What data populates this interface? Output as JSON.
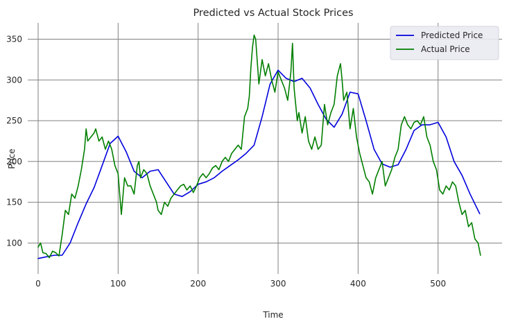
{
  "chart_data": {
    "type": "line",
    "title": "Predicted vs Actual Stock Prices",
    "xlabel": "Time",
    "ylabel": "Price",
    "xlim": [
      -13,
      580
    ],
    "ylim": [
      62,
      370
    ],
    "xticks": [
      0,
      100,
      200,
      300,
      400,
      500
    ],
    "yticks": [
      100,
      150,
      200,
      250,
      300,
      350
    ],
    "grid": true,
    "legend_position": "top-right",
    "series": [
      {
        "name": "Predicted Price",
        "color": "#0000dd",
        "x": [
          0,
          10,
          20,
          30,
          40,
          50,
          60,
          70,
          80,
          90,
          100,
          110,
          120,
          130,
          140,
          150,
          160,
          170,
          180,
          190,
          200,
          210,
          220,
          230,
          240,
          250,
          260,
          270,
          280,
          290,
          300,
          310,
          320,
          330,
          340,
          350,
          360,
          370,
          380,
          390,
          400,
          410,
          420,
          430,
          440,
          450,
          460,
          470,
          480,
          490,
          500,
          510,
          520,
          530,
          540,
          552
        ],
        "values": [
          81,
          83,
          85,
          85,
          100,
          125,
          148,
          168,
          195,
          222,
          231,
          212,
          188,
          180,
          188,
          190,
          175,
          160,
          157,
          163,
          172,
          175,
          180,
          188,
          195,
          202,
          210,
          220,
          255,
          295,
          312,
          302,
          298,
          302,
          290,
          270,
          252,
          242,
          258,
          285,
          283,
          250,
          215,
          197,
          193,
          196,
          215,
          238,
          245,
          245,
          248,
          230,
          200,
          183,
          160,
          136
        ]
      },
      {
        "name": "Actual Price",
        "color": "#007f00",
        "x": [
          0,
          3,
          6,
          10,
          14,
          18,
          22,
          26,
          30,
          34,
          38,
          42,
          46,
          50,
          54,
          58,
          60,
          62,
          66,
          70,
          72,
          76,
          80,
          84,
          88,
          92,
          96,
          100,
          102,
          104,
          108,
          112,
          116,
          120,
          124,
          126,
          128,
          132,
          136,
          140,
          144,
          148,
          150,
          154,
          158,
          162,
          166,
          170,
          174,
          178,
          182,
          186,
          190,
          194,
          198,
          202,
          206,
          210,
          214,
          218,
          222,
          226,
          230,
          234,
          238,
          242,
          246,
          250,
          254,
          258,
          262,
          264,
          266,
          268,
          270,
          272,
          276,
          280,
          284,
          288,
          292,
          296,
          300,
          304,
          308,
          312,
          316,
          318,
          320,
          324,
          326,
          330,
          334,
          338,
          342,
          346,
          350,
          354,
          358,
          362,
          366,
          370,
          374,
          378,
          380,
          382,
          386,
          390,
          394,
          398,
          402,
          406,
          410,
          414,
          418,
          422,
          426,
          430,
          434,
          438,
          442,
          446,
          450,
          454,
          458,
          462,
          466,
          470,
          474,
          478,
          482,
          486,
          490,
          494,
          498,
          502,
          506,
          510,
          514,
          518,
          522,
          526,
          530,
          534,
          538,
          542,
          546,
          550,
          553
        ],
        "values": [
          95,
          100,
          88,
          87,
          82,
          90,
          88,
          84,
          110,
          140,
          135,
          160,
          155,
          170,
          190,
          215,
          240,
          225,
          230,
          235,
          240,
          225,
          230,
          215,
          225,
          215,
          195,
          185,
          160,
          135,
          180,
          170,
          170,
          160,
          195,
          200,
          180,
          190,
          185,
          170,
          160,
          150,
          140,
          135,
          150,
          145,
          155,
          160,
          165,
          170,
          172,
          165,
          170,
          162,
          170,
          180,
          185,
          180,
          185,
          192,
          195,
          190,
          200,
          205,
          200,
          210,
          215,
          220,
          215,
          255,
          265,
          280,
          315,
          340,
          355,
          350,
          295,
          325,
          305,
          320,
          300,
          285,
          310,
          300,
          290,
          275,
          310,
          345,
          290,
          250,
          260,
          235,
          255,
          225,
          215,
          230,
          215,
          220,
          270,
          245,
          260,
          270,
          305,
          320,
          300,
          275,
          285,
          240,
          265,
          230,
          210,
          195,
          180,
          175,
          160,
          180,
          190,
          200,
          170,
          180,
          190,
          205,
          215,
          245,
          255,
          245,
          240,
          248,
          250,
          245,
          255,
          230,
          220,
          200,
          190,
          165,
          160,
          170,
          165,
          175,
          170,
          150,
          135,
          140,
          120,
          125,
          105,
          100,
          85
        ]
      }
    ]
  }
}
